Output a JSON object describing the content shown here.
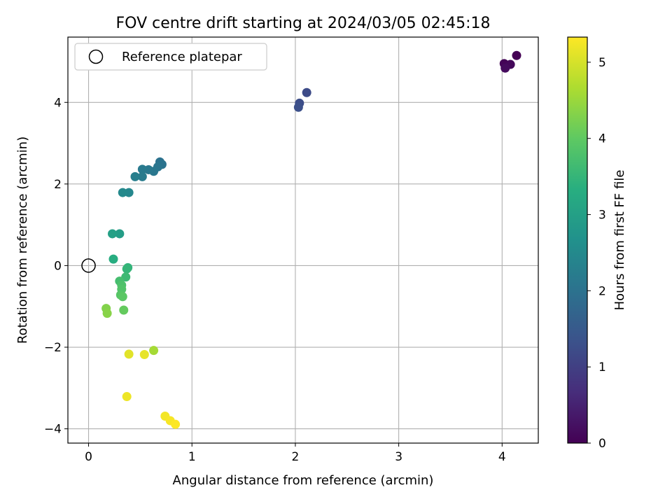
{
  "chart_data": {
    "type": "scatter",
    "title": "FOV centre drift starting at 2024/03/05 02:45:18",
    "xlabel": "Angular distance from reference (arcmin)",
    "ylabel": "Rotation from reference (arcmin)",
    "xlim": [
      -0.2,
      4.35
    ],
    "ylim": [
      -4.35,
      5.6
    ],
    "xticks": [
      0,
      1,
      2,
      3,
      4
    ],
    "yticks": [
      -4,
      -2,
      0,
      2,
      4
    ],
    "grid": true,
    "legend": {
      "placement": "upper-left",
      "entries": [
        "Reference platepar"
      ]
    },
    "reference_point": {
      "x": 0,
      "y": 0
    },
    "colorbar": {
      "label": "Hours from first FF file",
      "range": [
        0,
        5.33
      ],
      "ticks": [
        0,
        1,
        2,
        3,
        4,
        5
      ],
      "colormap": "viridis"
    },
    "series": [
      {
        "points": [
          {
            "x": 4.14,
            "y": 5.15,
            "c": 0.0
          },
          {
            "x": 4.02,
            "y": 4.95,
            "c": 0.05
          },
          {
            "x": 4.08,
            "y": 4.93,
            "c": 0.1
          },
          {
            "x": 4.03,
            "y": 4.84,
            "c": 0.15
          },
          {
            "x": 2.11,
            "y": 4.24,
            "c": 1.2
          },
          {
            "x": 2.04,
            "y": 3.98,
            "c": 1.25
          },
          {
            "x": 2.03,
            "y": 3.88,
            "c": 1.3
          },
          {
            "x": 0.69,
            "y": 2.54,
            "c": 2.0
          },
          {
            "x": 0.71,
            "y": 2.48,
            "c": 2.03
          },
          {
            "x": 0.67,
            "y": 2.42,
            "c": 2.06
          },
          {
            "x": 0.63,
            "y": 2.31,
            "c": 2.1
          },
          {
            "x": 0.58,
            "y": 2.35,
            "c": 2.13
          },
          {
            "x": 0.52,
            "y": 2.36,
            "c": 2.16
          },
          {
            "x": 0.52,
            "y": 2.18,
            "c": 2.2
          },
          {
            "x": 0.45,
            "y": 2.18,
            "c": 2.25
          },
          {
            "x": 0.39,
            "y": 1.79,
            "c": 2.45
          },
          {
            "x": 0.33,
            "y": 1.79,
            "c": 2.5
          },
          {
            "x": 0.3,
            "y": 0.78,
            "c": 2.95
          },
          {
            "x": 0.23,
            "y": 0.78,
            "c": 3.0
          },
          {
            "x": 0.24,
            "y": 0.16,
            "c": 3.3
          },
          {
            "x": 0.38,
            "y": -0.05,
            "c": 3.45
          },
          {
            "x": 0.37,
            "y": -0.08,
            "c": 3.5
          },
          {
            "x": 0.36,
            "y": -0.28,
            "c": 3.6
          },
          {
            "x": 0.3,
            "y": -0.38,
            "c": 3.7
          },
          {
            "x": 0.32,
            "y": -0.48,
            "c": 3.8
          },
          {
            "x": 0.32,
            "y": -0.58,
            "c": 3.85
          },
          {
            "x": 0.31,
            "y": -0.72,
            "c": 3.9
          },
          {
            "x": 0.33,
            "y": -0.76,
            "c": 3.95
          },
          {
            "x": 0.34,
            "y": -1.09,
            "c": 4.05
          },
          {
            "x": 0.17,
            "y": -1.05,
            "c": 4.3
          },
          {
            "x": 0.18,
            "y": -1.17,
            "c": 4.35
          },
          {
            "x": 0.63,
            "y": -2.08,
            "c": 4.6
          },
          {
            "x": 0.39,
            "y": -2.17,
            "c": 5.1
          },
          {
            "x": 0.54,
            "y": -2.18,
            "c": 5.15
          },
          {
            "x": 0.37,
            "y": -3.21,
            "c": 5.2
          },
          {
            "x": 0.74,
            "y": -3.69,
            "c": 5.25
          },
          {
            "x": 0.79,
            "y": -3.8,
            "c": 5.28
          },
          {
            "x": 0.84,
            "y": -3.89,
            "c": 5.32
          }
        ]
      }
    ]
  }
}
